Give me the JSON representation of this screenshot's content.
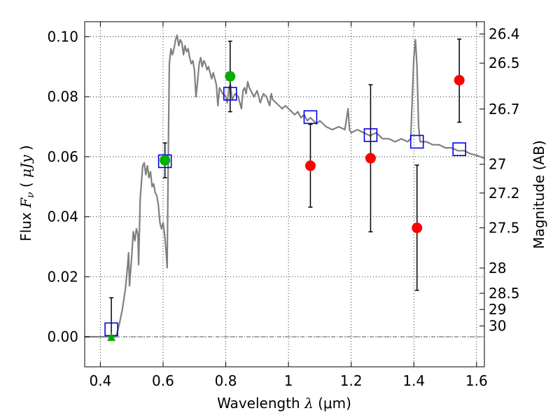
{
  "chart_data": {
    "type": "scatter",
    "xlabel_text": "Wavelength",
    "xlabel_symbol": "λ",
    "xlabel_unit": "(μm)",
    "ylabel_text": "Flux",
    "ylabel_symbol": "F",
    "ylabel_sub": "ν",
    "ylabel_unit_open": "(",
    "ylabel_unit": "μJy",
    "ylabel_unit_close": ")",
    "y2label": "Magnitude (AB)",
    "xlim": [
      0.35,
      1.625
    ],
    "ylim": [
      -0.01,
      0.105
    ],
    "xticks": [
      0.4,
      0.6,
      0.8,
      1.0,
      1.2,
      1.4,
      1.6
    ],
    "xtick_labels": [
      "0.4",
      "0.6",
      "0.8",
      "1",
      "1.2",
      "1.4",
      "1.6"
    ],
    "yticks": [
      0.0,
      0.02,
      0.04,
      0.06,
      0.08,
      0.1
    ],
    "ytick_labels": [
      "0.00",
      "0.02",
      "0.04",
      "0.06",
      "0.08",
      "0.10"
    ],
    "y2ticks": [
      {
        "label": "26.4",
        "flux": 0.1009
      },
      {
        "label": "26.5",
        "flux": 0.0912
      },
      {
        "label": "26.7",
        "flux": 0.0759
      },
      {
        "label": "27",
        "flux": 0.0575
      },
      {
        "label": "27.2",
        "flux": 0.0479
      },
      {
        "label": "27.5",
        "flux": 0.0363
      },
      {
        "label": "28",
        "flux": 0.0229
      },
      {
        "label": "28.5",
        "flux": 0.0145
      },
      {
        "label": "29",
        "flux": 0.0091
      },
      {
        "label": "30",
        "flux": 0.0036
      }
    ],
    "grid": true,
    "grid_style": "dotted",
    "zero_line": true,
    "colors": {
      "sed": "#808080",
      "model_box": "#0000ee",
      "green": "#00b000",
      "red": "#ff0000",
      "errorbar": "#000000"
    },
    "sed_curve": [
      [
        0.35,
        0.0
      ],
      [
        0.44,
        0.0
      ],
      [
        0.45,
        0.0
      ],
      [
        0.46,
        0.004
      ],
      [
        0.47,
        0.009
      ],
      [
        0.48,
        0.016
      ],
      [
        0.487,
        0.024
      ],
      [
        0.49,
        0.028
      ],
      [
        0.493,
        0.017
      ],
      [
        0.5,
        0.027
      ],
      [
        0.505,
        0.035
      ],
      [
        0.51,
        0.032
      ],
      [
        0.515,
        0.036
      ],
      [
        0.52,
        0.034
      ],
      [
        0.522,
        0.024
      ],
      [
        0.527,
        0.046
      ],
      [
        0.535,
        0.057
      ],
      [
        0.54,
        0.058
      ],
      [
        0.545,
        0.054
      ],
      [
        0.55,
        0.057
      ],
      [
        0.555,
        0.053
      ],
      [
        0.56,
        0.055
      ],
      [
        0.565,
        0.05
      ],
      [
        0.57,
        0.051
      ],
      [
        0.575,
        0.048
      ],
      [
        0.58,
        0.047
      ],
      [
        0.585,
        0.044
      ],
      [
        0.59,
        0.038
      ],
      [
        0.595,
        0.036
      ],
      [
        0.6,
        0.038
      ],
      [
        0.605,
        0.034
      ],
      [
        0.61,
        0.028
      ],
      [
        0.613,
        0.023
      ],
      [
        0.617,
        0.065
      ],
      [
        0.62,
        0.091
      ],
      [
        0.625,
        0.096
      ],
      [
        0.63,
        0.094
      ],
      [
        0.635,
        0.096
      ],
      [
        0.64,
        0.099
      ],
      [
        0.645,
        0.1005
      ],
      [
        0.65,
        0.097
      ],
      [
        0.655,
        0.099
      ],
      [
        0.66,
        0.098
      ],
      [
        0.665,
        0.094
      ],
      [
        0.67,
        0.097
      ],
      [
        0.675,
        0.095
      ],
      [
        0.68,
        0.096
      ],
      [
        0.685,
        0.093
      ],
      [
        0.69,
        0.091
      ],
      [
        0.695,
        0.092
      ],
      [
        0.7,
        0.089
      ],
      [
        0.705,
        0.08
      ],
      [
        0.71,
        0.085
      ],
      [
        0.715,
        0.091
      ],
      [
        0.72,
        0.093
      ],
      [
        0.725,
        0.09
      ],
      [
        0.73,
        0.092
      ],
      [
        0.735,
        0.091
      ],
      [
        0.74,
        0.089
      ],
      [
        0.745,
        0.09
      ],
      [
        0.75,
        0.088
      ],
      [
        0.755,
        0.086
      ],
      [
        0.76,
        0.088
      ],
      [
        0.765,
        0.086
      ],
      [
        0.77,
        0.084
      ],
      [
        0.775,
        0.077
      ],
      [
        0.78,
        0.083
      ],
      [
        0.79,
        0.081
      ],
      [
        0.8,
        0.08
      ],
      [
        0.805,
        0.078
      ],
      [
        0.81,
        0.083
      ],
      [
        0.815,
        0.084
      ],
      [
        0.82,
        0.079
      ],
      [
        0.83,
        0.081
      ],
      [
        0.84,
        0.08
      ],
      [
        0.85,
        0.076
      ],
      [
        0.855,
        0.082
      ],
      [
        0.86,
        0.083
      ],
      [
        0.865,
        0.081
      ],
      [
        0.87,
        0.085
      ],
      [
        0.875,
        0.083
      ],
      [
        0.88,
        0.082
      ],
      [
        0.89,
        0.08
      ],
      [
        0.9,
        0.082
      ],
      [
        0.91,
        0.078
      ],
      [
        0.92,
        0.081
      ],
      [
        0.93,
        0.08
      ],
      [
        0.94,
        0.077
      ],
      [
        0.945,
        0.081
      ],
      [
        0.95,
        0.079
      ],
      [
        0.96,
        0.078
      ],
      [
        0.97,
        0.077
      ],
      [
        0.98,
        0.076
      ],
      [
        0.99,
        0.077
      ],
      [
        1.0,
        0.076
      ],
      [
        1.01,
        0.075
      ],
      [
        1.02,
        0.074
      ],
      [
        1.03,
        0.075
      ],
      [
        1.04,
        0.073
      ],
      [
        1.05,
        0.074
      ],
      [
        1.06,
        0.072
      ],
      [
        1.07,
        0.073
      ],
      [
        1.08,
        0.072
      ],
      [
        1.09,
        0.071
      ],
      [
        1.1,
        0.072
      ],
      [
        1.12,
        0.07
      ],
      [
        1.14,
        0.069
      ],
      [
        1.16,
        0.07
      ],
      [
        1.18,
        0.069
      ],
      [
        1.19,
        0.076
      ],
      [
        1.195,
        0.069
      ],
      [
        1.2,
        0.068
      ],
      [
        1.22,
        0.069
      ],
      [
        1.24,
        0.068
      ],
      [
        1.26,
        0.067
      ],
      [
        1.28,
        0.068
      ],
      [
        1.3,
        0.066
      ],
      [
        1.32,
        0.066
      ],
      [
        1.34,
        0.065
      ],
      [
        1.36,
        0.066
      ],
      [
        1.38,
        0.065
      ],
      [
        1.39,
        0.066
      ],
      [
        1.395,
        0.08
      ],
      [
        1.4,
        0.093
      ],
      [
        1.405,
        0.099
      ],
      [
        1.41,
        0.09
      ],
      [
        1.415,
        0.07
      ],
      [
        1.42,
        0.065
      ],
      [
        1.44,
        0.065
      ],
      [
        1.46,
        0.064
      ],
      [
        1.48,
        0.064
      ],
      [
        1.5,
        0.063
      ],
      [
        1.52,
        0.063
      ],
      [
        1.54,
        0.062
      ],
      [
        1.56,
        0.062
      ],
      [
        1.58,
        0.061
      ],
      [
        1.6,
        0.0605
      ],
      [
        1.625,
        0.0595
      ]
    ],
    "model_points": [
      {
        "x": 0.435,
        "y": 0.0025
      },
      {
        "x": 0.606,
        "y": 0.0585
      },
      {
        "x": 0.814,
        "y": 0.081
      },
      {
        "x": 1.07,
        "y": 0.0732
      },
      {
        "x": 1.262,
        "y": 0.0672
      },
      {
        "x": 1.41,
        "y": 0.065
      },
      {
        "x": 1.545,
        "y": 0.0625
      }
    ],
    "green_points": [
      {
        "x": 0.606,
        "y": 0.0588,
        "err": [
          0.053,
          0.0646
        ]
      },
      {
        "x": 0.814,
        "y": 0.0868,
        "err": [
          0.075,
          0.0985
        ]
      }
    ],
    "green_triangle": {
      "x": 0.435,
      "y": 0.0,
      "err": [
        0.0,
        0.013
      ]
    },
    "red_points": [
      {
        "x": 1.07,
        "y": 0.057,
        "err": [
          0.0432,
          0.0708
        ]
      },
      {
        "x": 1.262,
        "y": 0.0595,
        "err": [
          0.035,
          0.084
        ]
      },
      {
        "x": 1.41,
        "y": 0.0363,
        "err": [
          0.0155,
          0.0572
        ]
      },
      {
        "x": 1.545,
        "y": 0.0855,
        "err": [
          0.0715,
          0.0992
        ]
      }
    ]
  }
}
